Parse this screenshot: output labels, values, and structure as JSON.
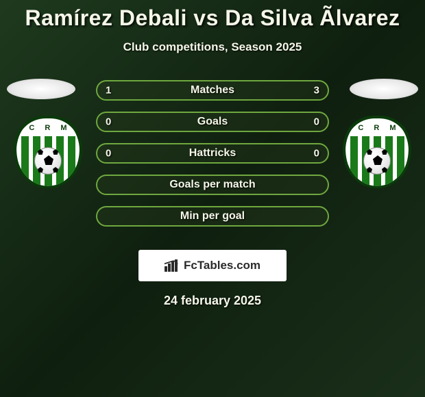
{
  "header": {
    "title": "Ramírez Debali vs Da Silva Ãlvarez",
    "subtitle": "Club competitions, Season 2025"
  },
  "players": {
    "left": {
      "club_initials": "C R M"
    },
    "right": {
      "club_initials": "C R M"
    }
  },
  "stats": {
    "rows": [
      {
        "label": "Matches",
        "left": "1",
        "right": "3"
      },
      {
        "label": "Goals",
        "left": "0",
        "right": "0"
      },
      {
        "label": "Hattricks",
        "left": "0",
        "right": "0"
      },
      {
        "label": "Goals per match",
        "left": "",
        "right": ""
      },
      {
        "label": "Min per goal",
        "left": "",
        "right": ""
      }
    ]
  },
  "branding": {
    "text": "FcTables.com"
  },
  "date": "24 february 2025",
  "style": {
    "pill_border": "#6fa83f",
    "text_color": "#f5f7e8",
    "club_green": "#1a7a1a",
    "title_fontsize": 32,
    "subtitle_fontsize": 17,
    "stat_label_fontsize": 16
  }
}
